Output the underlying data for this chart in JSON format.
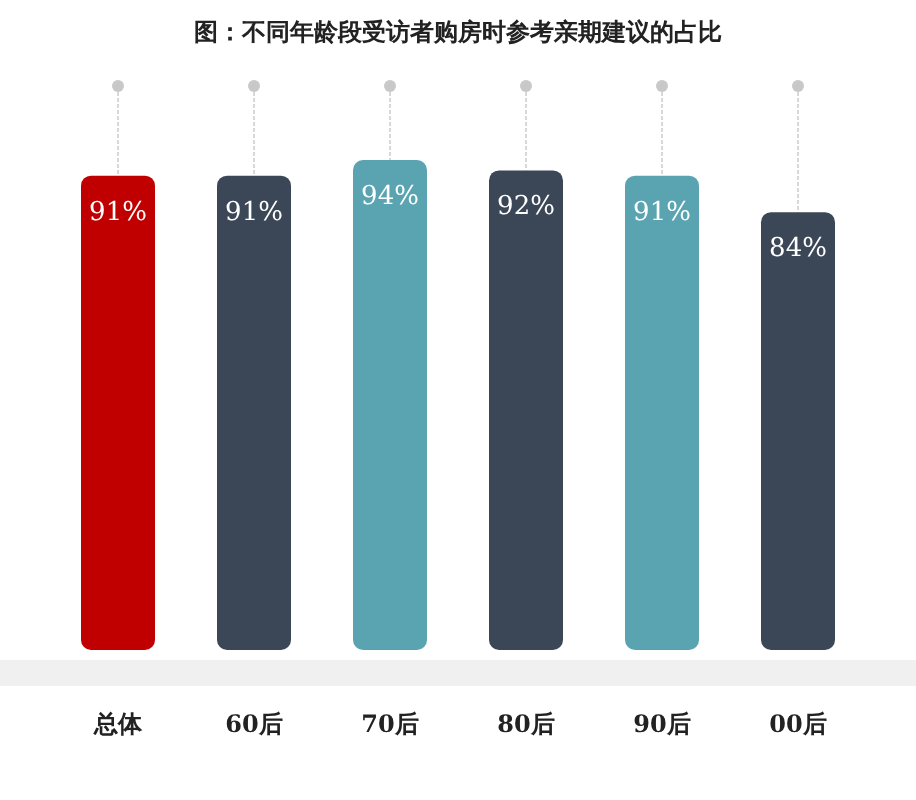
{
  "chart_data": {
    "type": "bar",
    "title": "图：不同年龄段受访者购房时参考亲期建议的占比",
    "categories": [
      "总体",
      "60后",
      "70后",
      "80后",
      "90后",
      "00后"
    ],
    "values": [
      91,
      91,
      94,
      92,
      91,
      84
    ],
    "colors": [
      "#c00000",
      "#3b4656",
      "#5aa4b1",
      "#3b4656",
      "#5aa4b1",
      "#3b4656"
    ],
    "value_labels": [
      "91%",
      "91%",
      "94%",
      "92%",
      "91%",
      "84%"
    ]
  }
}
